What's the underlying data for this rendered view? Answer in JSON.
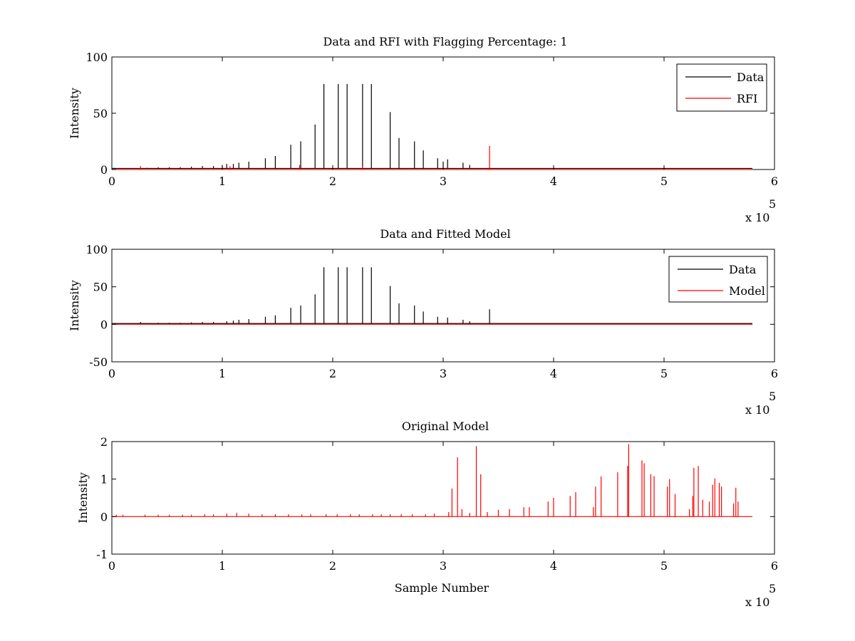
{
  "chart_data": [
    {
      "type": "line",
      "title": "Data and RFI with Flagging Percentage: 1",
      "xlabel": "",
      "ylabel": "Intensity",
      "xlim": [
        0,
        6
      ],
      "ylim": [
        0,
        100
      ],
      "xticks": [
        "0",
        "1",
        "2",
        "3",
        "4",
        "5",
        "6"
      ],
      "yticks": [
        "0",
        "50",
        "100"
      ],
      "x_multiplier_text": "x 10",
      "x_multiplier_exp": "5",
      "legend_position": "top-right",
      "series": [
        {
          "name": "Data",
          "color": "#000000",
          "baseline": 1,
          "peaks": [
            [
              0.02,
              1.5
            ],
            [
              0.12,
              1
            ],
            [
              0.32,
              1.5
            ],
            [
              0.42,
              2
            ],
            [
              0.52,
              2
            ],
            [
              0.62,
              2
            ],
            [
              0.72,
              2.5
            ],
            [
              0.82,
              3
            ],
            [
              0.92,
              3
            ],
            [
              1.0,
              4
            ],
            [
              1.04,
              5
            ],
            [
              1.1,
              5
            ],
            [
              1.15,
              6
            ],
            [
              1.24,
              7
            ],
            [
              1.39,
              10
            ],
            [
              1.48,
              12
            ],
            [
              1.62,
              22
            ],
            [
              1.71,
              25
            ],
            [
              1.84,
              40
            ],
            [
              1.92,
              76
            ],
            [
              2.05,
              76
            ],
            [
              2.13,
              76
            ],
            [
              2.27,
              76
            ],
            [
              2.35,
              76
            ],
            [
              2.52,
              51
            ],
            [
              2.6,
              28
            ],
            [
              2.74,
              25
            ],
            [
              2.82,
              17
            ],
            [
              2.95,
              10
            ],
            [
              3.0,
              7
            ],
            [
              3.04,
              9
            ],
            [
              3.18,
              6
            ],
            [
              3.24,
              4
            ],
            [
              3.42,
              2
            ],
            [
              3.6,
              1
            ],
            [
              3.9,
              1
            ],
            [
              4.3,
              1
            ],
            [
              4.7,
              1
            ],
            [
              5.1,
              1
            ],
            [
              5.5,
              1
            ]
          ]
        },
        {
          "name": "RFI",
          "color": "#ff0000",
          "baseline": 0,
          "peaks": [
            [
              0.26,
              3
            ],
            [
              1.07,
              3
            ],
            [
              1.7,
              4
            ],
            [
              2.27,
              3
            ],
            [
              3.42,
              21
            ]
          ]
        }
      ]
    },
    {
      "type": "line",
      "title": "Data and Fitted Model",
      "xlabel": "",
      "ylabel": "Intensity",
      "xlim": [
        0,
        6
      ],
      "ylim": [
        -50,
        100
      ],
      "xticks": [
        "0",
        "1",
        "2",
        "3",
        "4",
        "5",
        "6"
      ],
      "yticks": [
        "-50",
        "0",
        "50",
        "100"
      ],
      "x_multiplier_text": "x 10",
      "x_multiplier_exp": "5",
      "legend_position": "top-right",
      "series": [
        {
          "name": "Data",
          "color": "#000000",
          "baseline": 1,
          "peaks": [
            [
              0.26,
              3
            ],
            [
              0.42,
              2
            ],
            [
              0.52,
              2
            ],
            [
              0.62,
              2
            ],
            [
              0.72,
              2.5
            ],
            [
              0.82,
              3
            ],
            [
              0.92,
              3
            ],
            [
              1.04,
              4
            ],
            [
              1.1,
              5
            ],
            [
              1.15,
              6
            ],
            [
              1.24,
              7
            ],
            [
              1.39,
              10
            ],
            [
              1.48,
              12
            ],
            [
              1.62,
              22
            ],
            [
              1.71,
              25
            ],
            [
              1.84,
              40
            ],
            [
              1.92,
              76
            ],
            [
              2.05,
              76
            ],
            [
              2.13,
              76
            ],
            [
              2.27,
              76
            ],
            [
              2.35,
              76
            ],
            [
              2.52,
              51
            ],
            [
              2.6,
              28
            ],
            [
              2.74,
              25
            ],
            [
              2.82,
              17
            ],
            [
              2.95,
              10
            ],
            [
              3.04,
              9
            ],
            [
              3.18,
              6
            ],
            [
              3.24,
              4
            ],
            [
              3.42,
              20
            ]
          ]
        },
        {
          "name": "Model",
          "color": "#ff0000",
          "baseline": 0,
          "peaks": []
        }
      ]
    },
    {
      "type": "line",
      "title": "Original Model",
      "xlabel": "Sample Number",
      "ylabel": "Intensity",
      "xlim": [
        0,
        6
      ],
      "ylim": [
        -1,
        2
      ],
      "xticks": [
        "0",
        "1",
        "2",
        "3",
        "4",
        "5",
        "6"
      ],
      "yticks": [
        "-1",
        "0",
        "1",
        "2"
      ],
      "x_multiplier_text": "x 10",
      "x_multiplier_exp": "5",
      "series": [
        {
          "color": "#ff0000",
          "baseline": 0,
          "peaks": [
            [
              0.04,
              0.05
            ],
            [
              0.1,
              0.05
            ],
            [
              0.3,
              0.05
            ],
            [
              0.42,
              0.05
            ],
            [
              0.52,
              0.05
            ],
            [
              0.64,
              0.05
            ],
            [
              0.72,
              0.05
            ],
            [
              0.84,
              0.06
            ],
            [
              0.92,
              0.06
            ],
            [
              1.04,
              0.08
            ],
            [
              1.13,
              0.1
            ],
            [
              1.24,
              0.08
            ],
            [
              1.36,
              0.06
            ],
            [
              1.48,
              0.06
            ],
            [
              1.6,
              0.06
            ],
            [
              1.72,
              0.06
            ],
            [
              1.8,
              0.06
            ],
            [
              1.94,
              0.06
            ],
            [
              2.04,
              0.06
            ],
            [
              2.16,
              0.06
            ],
            [
              2.24,
              0.06
            ],
            [
              2.36,
              0.06
            ],
            [
              2.44,
              0.06
            ],
            [
              2.52,
              0.06
            ],
            [
              2.62,
              0.06
            ],
            [
              2.72,
              0.06
            ],
            [
              2.84,
              0.06
            ],
            [
              2.92,
              0.08
            ],
            [
              3.05,
              0.12
            ],
            [
              3.08,
              0.75
            ],
            [
              3.13,
              1.58
            ],
            [
              3.17,
              0.2
            ],
            [
              3.24,
              0.1
            ],
            [
              3.3,
              1.88
            ],
            [
              3.34,
              1.13
            ],
            [
              3.4,
              0.12
            ],
            [
              3.5,
              0.18
            ],
            [
              3.6,
              0.2
            ],
            [
              3.73,
              0.25
            ],
            [
              3.78,
              0.25
            ],
            [
              3.95,
              0.4
            ],
            [
              4.0,
              0.5
            ],
            [
              4.15,
              0.55
            ],
            [
              4.2,
              0.65
            ],
            [
              4.36,
              0.25
            ],
            [
              4.38,
              0.8
            ],
            [
              4.43,
              1.07
            ],
            [
              4.58,
              1.18
            ],
            [
              4.67,
              1.35
            ],
            [
              4.68,
              1.93
            ],
            [
              4.8,
              1.5
            ],
            [
              4.82,
              1.42
            ],
            [
              4.88,
              1.13
            ],
            [
              4.91,
              1.08
            ],
            [
              5.03,
              0.8
            ],
            [
              5.05,
              1.0
            ],
            [
              5.1,
              0.6
            ],
            [
              5.23,
              0.2
            ],
            [
              5.26,
              0.55
            ],
            [
              5.27,
              1.3
            ],
            [
              5.31,
              1.35
            ],
            [
              5.35,
              0.45
            ],
            [
              5.41,
              0.4
            ],
            [
              5.44,
              0.85
            ],
            [
              5.46,
              1.02
            ],
            [
              5.5,
              0.9
            ],
            [
              5.52,
              0.8
            ],
            [
              5.63,
              0.35
            ],
            [
              5.65,
              0.77
            ],
            [
              5.67,
              0.4
            ]
          ]
        }
      ]
    }
  ]
}
